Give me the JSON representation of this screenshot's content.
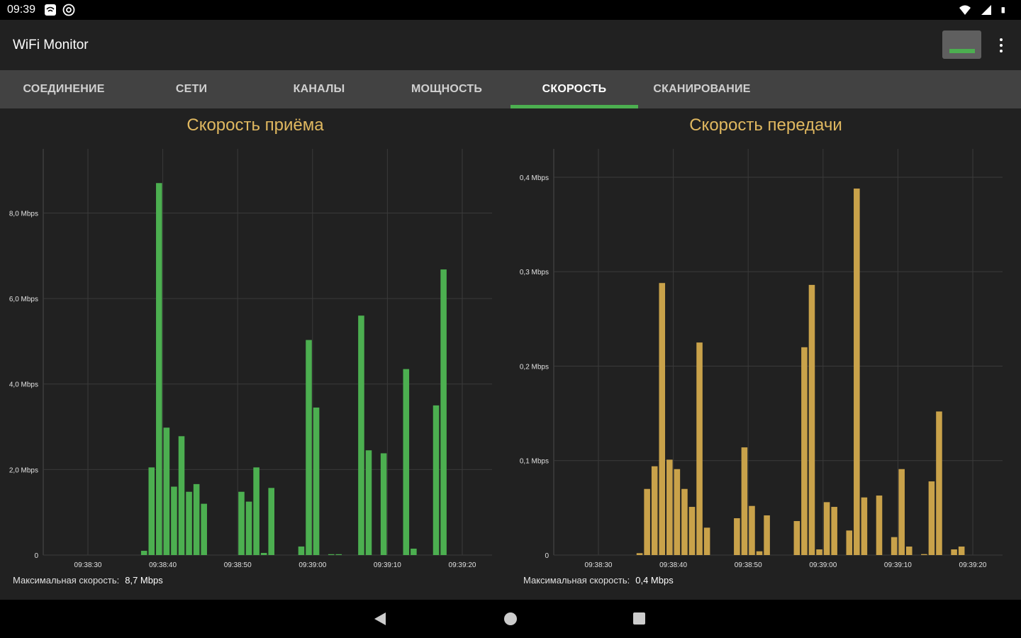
{
  "status": {
    "time": "09:39"
  },
  "app": {
    "title": "WiFi Monitor"
  },
  "tabs": [
    {
      "label": "СОЕДИНЕНИЕ",
      "active": false
    },
    {
      "label": "СЕТИ",
      "active": false
    },
    {
      "label": "КАНАЛЫ",
      "active": false
    },
    {
      "label": "МОЩНОСТЬ",
      "active": false
    },
    {
      "label": "СКОРОСТЬ",
      "active": true
    },
    {
      "label": "СКАНИРОВАНИЕ",
      "active": false
    }
  ],
  "download": {
    "title": "Скорость приёма",
    "max_label": "Максимальная скорость:",
    "max_value": "8,7 Mbps"
  },
  "upload": {
    "title": "Скорость передачи",
    "max_label": "Максимальная скорость:",
    "max_value": "0,4 Mbps"
  },
  "colors": {
    "accent": "#4caf50",
    "download_bars": "#4caf50",
    "upload_bars": "#c9a24a",
    "title": "#e0b860"
  },
  "chart_data": [
    {
      "type": "bar",
      "title": "Скорость приёма",
      "unit": "Mbps",
      "ylim": [
        0,
        9.5
      ],
      "yticks": [
        0,
        2,
        4,
        6,
        8
      ],
      "ytick_labels": [
        "0",
        "2,0 Mbps",
        "4,0 Mbps",
        "6,0 Mbps",
        "8,0 Mbps"
      ],
      "xtick_labels": [
        "09:38:30",
        "09:38:40",
        "09:38:50",
        "09:39:00",
        "09:39:10",
        "09:39:20"
      ],
      "x_start": "09:38:24",
      "x_step_seconds": 1,
      "values": [
        0,
        0,
        0,
        0,
        0,
        0,
        0,
        0,
        0,
        0,
        0,
        0,
        0,
        0.1,
        2.05,
        8.7,
        2.98,
        1.6,
        2.78,
        1.48,
        1.66,
        1.2,
        0,
        0,
        0,
        0,
        1.48,
        1.25,
        2.05,
        0.05,
        1.57,
        0,
        0,
        0,
        0.2,
        5.03,
        3.45,
        0,
        0.02,
        0.02,
        0,
        0,
        5.6,
        2.45,
        0,
        2.38,
        0,
        0,
        4.35,
        0.15,
        0,
        0,
        3.5,
        6.68,
        0,
        0,
        0,
        0,
        0,
        0
      ]
    },
    {
      "type": "bar",
      "title": "Скорость передачи",
      "unit": "Mbps",
      "ylim": [
        0,
        0.43
      ],
      "yticks": [
        0,
        0.1,
        0.2,
        0.3,
        0.4
      ],
      "ytick_labels": [
        "0",
        "0,1 Mbps",
        "0,2 Mbps",
        "0,3 Mbps",
        "0,4 Mbps"
      ],
      "xtick_labels": [
        "09:38:30",
        "09:38:40",
        "09:38:50",
        "09:39:00",
        "09:39:10",
        "09:39:20"
      ],
      "x_start": "09:38:24",
      "x_step_seconds": 1,
      "values": [
        0,
        0,
        0,
        0,
        0,
        0,
        0,
        0,
        0,
        0,
        0,
        0.002,
        0.07,
        0.094,
        0.288,
        0.101,
        0.091,
        0.07,
        0.051,
        0.225,
        0.029,
        0,
        0,
        0,
        0.039,
        0.114,
        0.052,
        0.004,
        0.042,
        0,
        0,
        0,
        0.036,
        0.22,
        0.286,
        0.006,
        0.056,
        0.051,
        0,
        0.026,
        0.388,
        0.061,
        0,
        0.063,
        0,
        0.019,
        0.091,
        0.009,
        0,
        0.001,
        0.078,
        0.152,
        0,
        0.006,
        0.009,
        0,
        0,
        0,
        0,
        0
      ]
    }
  ]
}
